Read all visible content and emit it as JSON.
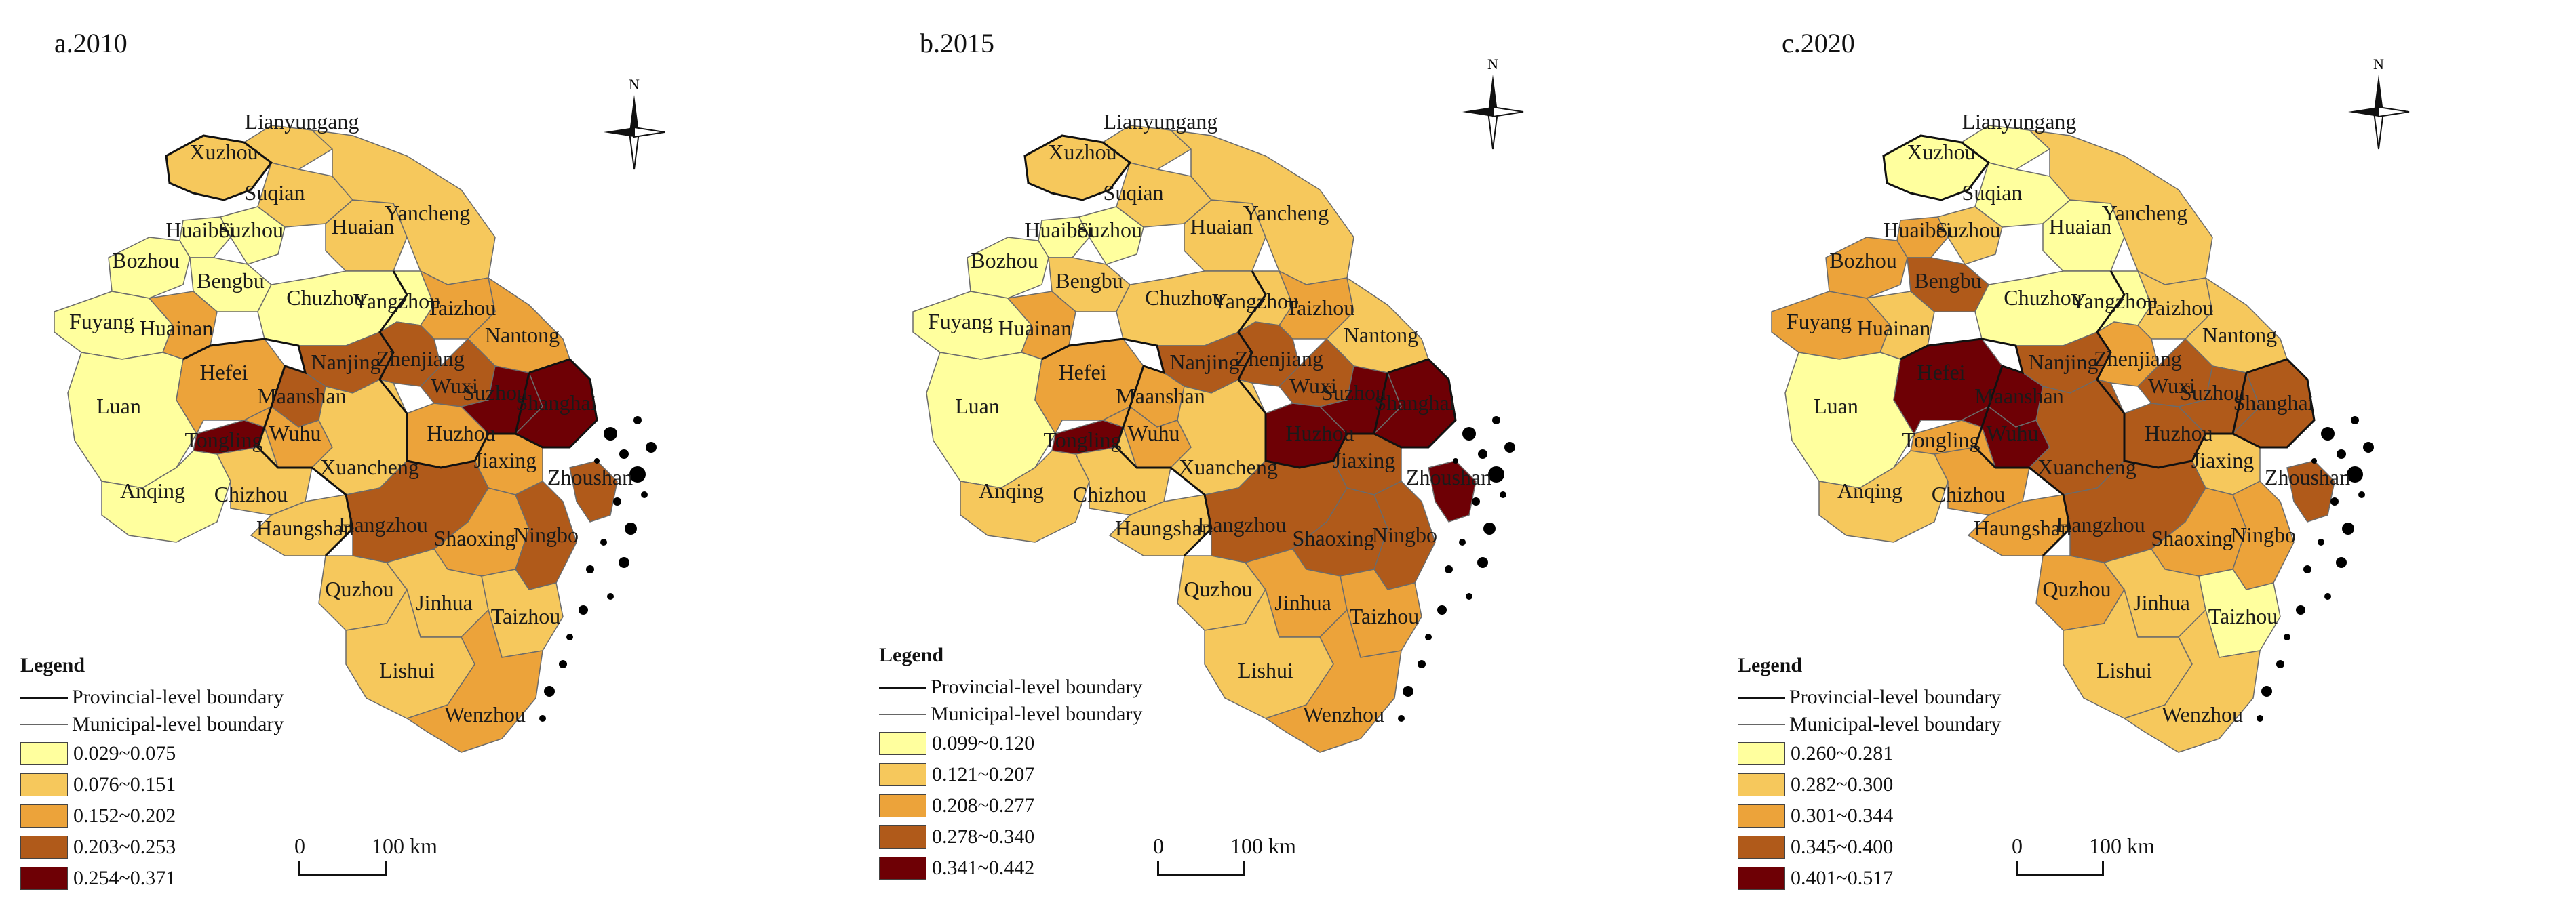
{
  "panels": [
    {
      "title": "a.2010",
      "legend": {
        "title": "Legend",
        "boundary_provincial": "Provincial-level boundary",
        "boundary_municipal": "Municipal-level boundary",
        "classes": [
          {
            "range": "0.029~0.075",
            "color": "#ffff9e"
          },
          {
            "range": "0.076~0.151",
            "color": "#f6c85c"
          },
          {
            "range": "0.152~0.202",
            "color": "#eca33a"
          },
          {
            "range": "0.203~0.253",
            "color": "#b05a1a"
          },
          {
            "range": "0.254~0.371",
            "color": "#6e0005"
          }
        ]
      },
      "scale": {
        "zero": "0",
        "distance": "100 km"
      },
      "north": "N",
      "regions": {
        "Lianyungang": 1,
        "Xuzhou": 1,
        "Suqian": 1,
        "Huaian": 1,
        "Yancheng": 1,
        "Suzhou_AH": 0,
        "Huaibei": 0,
        "Bozhou": 0,
        "Bengbu": 0,
        "Fuyang": 0,
        "Chuzhou": 0,
        "Huainan": 2,
        "Luan": 0,
        "Hefei": 2,
        "Yangzhou": 0,
        "Taizhou_JS": 2,
        "Nantong": 2,
        "Nanjing": 3,
        "Zhenjiang": 3,
        "Maanshan": 3,
        "Wuhu": 2,
        "Wuxi": 3,
        "Suzhou_JS": 4,
        "Shanghai": 4,
        "Tongling": 4,
        "Anqing": 0,
        "Chizhou": 1,
        "Xuancheng": 1,
        "Huzhou": 2,
        "Jiaxing": 2,
        "Huangshan": 1,
        "Hangzhou": 3,
        "Shaoxing": 2,
        "Ningbo": 3,
        "Zhoushan": 3,
        "Quzhou": 1,
        "Jinhua": 1,
        "Taizhou_ZJ": 1,
        "Lishui": 1,
        "Wenzhou": 2
      }
    },
    {
      "title": "b.2015",
      "legend": {
        "title": "Legend",
        "boundary_provincial": "Provincial-level boundary",
        "boundary_municipal": "Municipal-level boundary",
        "classes": [
          {
            "range": "0.099~0.120",
            "color": "#ffff9e"
          },
          {
            "range": "0.121~0.207",
            "color": "#f6c85c"
          },
          {
            "range": "0.208~0.277",
            "color": "#eca33a"
          },
          {
            "range": "0.278~0.340",
            "color": "#b05a1a"
          },
          {
            "range": "0.341~0.442",
            "color": "#6e0005"
          }
        ]
      },
      "scale": {
        "zero": "0",
        "distance": "100 km"
      },
      "north": "N",
      "regions": {
        "Lianyungang": 1,
        "Xuzhou": 1,
        "Suqian": 1,
        "Huaian": 1,
        "Yancheng": 1,
        "Suzhou_AH": 0,
        "Huaibei": 0,
        "Bozhou": 0,
        "Bengbu": 1,
        "Fuyang": 0,
        "Chuzhou": 1,
        "Huainan": 2,
        "Luan": 0,
        "Hefei": 2,
        "Yangzhou": 1,
        "Taizhou_JS": 2,
        "Nantong": 1,
        "Nanjing": 3,
        "Zhenjiang": 3,
        "Maanshan": 2,
        "Wuhu": 2,
        "Wuxi": 3,
        "Suzhou_JS": 4,
        "Shanghai": 4,
        "Tongling": 4,
        "Anqing": 1,
        "Chizhou": 1,
        "Xuancheng": 1,
        "Huzhou": 4,
        "Jiaxing": 3,
        "Huangshan": 1,
        "Hangzhou": 3,
        "Shaoxing": 3,
        "Ningbo": 3,
        "Zhoushan": 4,
        "Quzhou": 1,
        "Jinhua": 2,
        "Taizhou_ZJ": 2,
        "Lishui": 1,
        "Wenzhou": 2
      }
    },
    {
      "title": "c.2020",
      "legend": {
        "title": "Legend",
        "boundary_provincial": "Provincial-level boundary",
        "boundary_municipal": "Municipal-level boundary",
        "classes": [
          {
            "range": "0.260~0.281",
            "color": "#ffff9e"
          },
          {
            "range": "0.282~0.300",
            "color": "#f6c85c"
          },
          {
            "range": "0.301~0.344",
            "color": "#eca33a"
          },
          {
            "range": "0.345~0.400",
            "color": "#b05a1a"
          },
          {
            "range": "0.401~0.517",
            "color": "#6e0005"
          }
        ]
      },
      "scale": {
        "zero": "0",
        "distance": "100 km"
      },
      "north": "N",
      "regions": {
        "Lianyungang": 0,
        "Xuzhou": 0,
        "Suqian": 0,
        "Huaian": 0,
        "Yancheng": 1,
        "Suzhou_AH": 1,
        "Huaibei": 2,
        "Bozhou": 2,
        "Bengbu": 3,
        "Fuyang": 2,
        "Chuzhou": 0,
        "Huainan": 1,
        "Luan": 0,
        "Hefei": 4,
        "Yangzhou": 0,
        "Taizhou_JS": 1,
        "Nantong": 1,
        "Nanjing": 3,
        "Zhenjiang": 2,
        "Maanshan": 4,
        "Wuhu": 4,
        "Wuxi": 3,
        "Suzhou_JS": 3,
        "Shanghai": 3,
        "Tongling": 2,
        "Anqing": 1,
        "Chizhou": 2,
        "Xuancheng": 3,
        "Huzhou": 3,
        "Jiaxing": 1,
        "Huangshan": 2,
        "Hangzhou": 3,
        "Shaoxing": 2,
        "Ningbo": 2,
        "Zhoushan": 3,
        "Quzhou": 2,
        "Jinhua": 1,
        "Taizhou_ZJ": 0,
        "Lishui": 1,
        "Wenzhou": 1
      }
    }
  ],
  "region_labels": {
    "Lianyungang": "Lianyungang",
    "Xuzhou": "Xuzhou",
    "Suqian": "Suqian",
    "Huaian": "Huaian",
    "Yancheng": "Yancheng",
    "Suzhou_AH": "Suzhou",
    "Huaibei": "Huaibei",
    "Bozhou": "Bozhou",
    "Bengbu": "Bengbu",
    "Fuyang": "Fuyang",
    "Chuzhou": "Chuzhou",
    "Huainan": "Huainan",
    "Luan": "Luan",
    "Hefei": "Hefei",
    "Yangzhou": "Yangzhou",
    "Taizhou_JS": "Taizhou",
    "Nantong": "Nantong",
    "Nanjing": "Nanjing",
    "Zhenjiang": "Zhenjiang",
    "Maanshan": "Maanshan",
    "Wuhu": "Wuhu",
    "Wuxi": "Wuxi",
    "Suzhou_JS": "Suzhou",
    "Shanghai": "Shanghai",
    "Tongling": "Tongling",
    "Anqing": "Anqing",
    "Chizhou": "Chizhou",
    "Xuancheng": "Xuancheng",
    "Huzhou": "Huzhou",
    "Jiaxing": "Jiaxing",
    "Huangshan": "Haungshan",
    "Hangzhou": "Hangzhou",
    "Shaoxing": "Shaoxing",
    "Ningbo": "Ningbo",
    "Zhoushan": "Zhoushan",
    "Quzhou": "Quzhou",
    "Jinhua": "Jinhua",
    "Taizhou_ZJ": "Taizhou",
    "Lishui": "Lishui",
    "Wenzhou": "Wenzhou"
  }
}
